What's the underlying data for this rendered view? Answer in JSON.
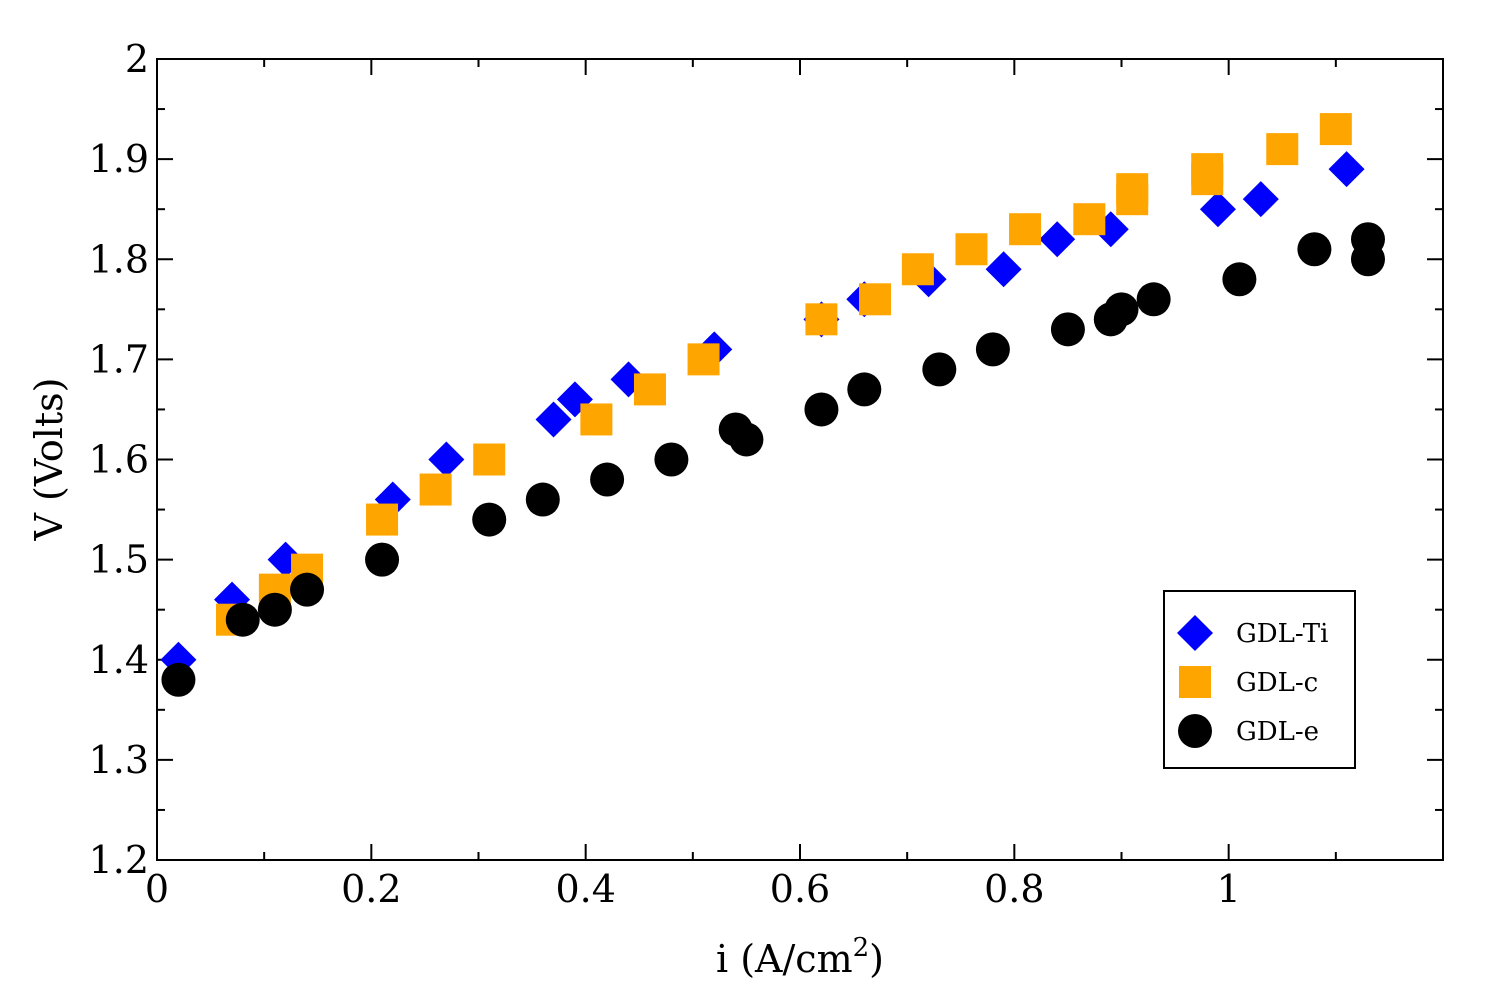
{
  "chart_data": {
    "type": "scatter",
    "title": "",
    "xlabel": "i (A/cm",
    "xlabel_superscript": "2",
    "xlabel_suffix": ")",
    "ylabel": "V (Volts)",
    "xlim": [
      0,
      1.2
    ],
    "ylim": [
      1.2,
      2.0
    ],
    "grid": false,
    "legend_position": "bottom-right",
    "x_ticks": [
      {
        "value": 0,
        "label": "0"
      },
      {
        "value": 0.2,
        "label": "0.2"
      },
      {
        "value": 0.4,
        "label": "0.4"
      },
      {
        "value": 0.6,
        "label": "0.6"
      },
      {
        "value": 0.8,
        "label": "0.8"
      },
      {
        "value": 1.0,
        "label": "1"
      }
    ],
    "x_minor_ticks": [
      0.1,
      0.3,
      0.5,
      0.7,
      0.9,
      1.1
    ],
    "y_ticks": [
      {
        "value": 1.2,
        "label": "1.2"
      },
      {
        "value": 1.3,
        "label": "1.3"
      },
      {
        "value": 1.4,
        "label": "1.4"
      },
      {
        "value": 1.5,
        "label": "1.5"
      },
      {
        "value": 1.6,
        "label": "1.6"
      },
      {
        "value": 1.7,
        "label": "1.7"
      },
      {
        "value": 1.8,
        "label": "1.8"
      },
      {
        "value": 1.9,
        "label": "1.9"
      },
      {
        "value": 2.0,
        "label": "2"
      }
    ],
    "y_minor_ticks": [
      1.25,
      1.35,
      1.45,
      1.55,
      1.65,
      1.75,
      1.85,
      1.95
    ],
    "series": [
      {
        "name": "GDL-Ti",
        "marker": "diamond",
        "color": "#0000ff",
        "x": [
          0.02,
          0.07,
          0.12,
          0.22,
          0.27,
          0.37,
          0.39,
          0.44,
          0.52,
          0.62,
          0.66,
          0.72,
          0.79,
          0.84,
          0.89,
          0.99,
          1.03,
          1.11
        ],
        "y": [
          1.4,
          1.46,
          1.5,
          1.56,
          1.6,
          1.64,
          1.66,
          1.68,
          1.71,
          1.74,
          1.76,
          1.78,
          1.79,
          1.82,
          1.83,
          1.85,
          1.86,
          1.89
        ]
      },
      {
        "name": "GDL-c",
        "marker": "square",
        "color": "#ffa500",
        "x": [
          0.07,
          0.11,
          0.14,
          0.21,
          0.26,
          0.31,
          0.41,
          0.46,
          0.51,
          0.62,
          0.67,
          0.71,
          0.76,
          0.81,
          0.87,
          0.91,
          0.91,
          0.98,
          0.98,
          1.05,
          1.1
        ],
        "y": [
          1.44,
          1.47,
          1.49,
          1.54,
          1.57,
          1.6,
          1.64,
          1.67,
          1.7,
          1.74,
          1.76,
          1.79,
          1.81,
          1.83,
          1.84,
          1.86,
          1.87,
          1.88,
          1.89,
          1.91,
          1.93
        ]
      },
      {
        "name": "GDL-e",
        "marker": "circle",
        "color": "#000000",
        "x": [
          0.02,
          0.08,
          0.11,
          0.14,
          0.21,
          0.31,
          0.36,
          0.42,
          0.48,
          0.54,
          0.55,
          0.62,
          0.66,
          0.73,
          0.78,
          0.85,
          0.89,
          0.9,
          0.93,
          1.01,
          1.08,
          1.13,
          1.13
        ],
        "y": [
          1.38,
          1.44,
          1.45,
          1.47,
          1.5,
          1.54,
          1.56,
          1.58,
          1.6,
          1.63,
          1.62,
          1.65,
          1.67,
          1.69,
          1.71,
          1.73,
          1.74,
          1.75,
          1.76,
          1.78,
          1.81,
          1.8,
          1.82
        ]
      }
    ]
  }
}
